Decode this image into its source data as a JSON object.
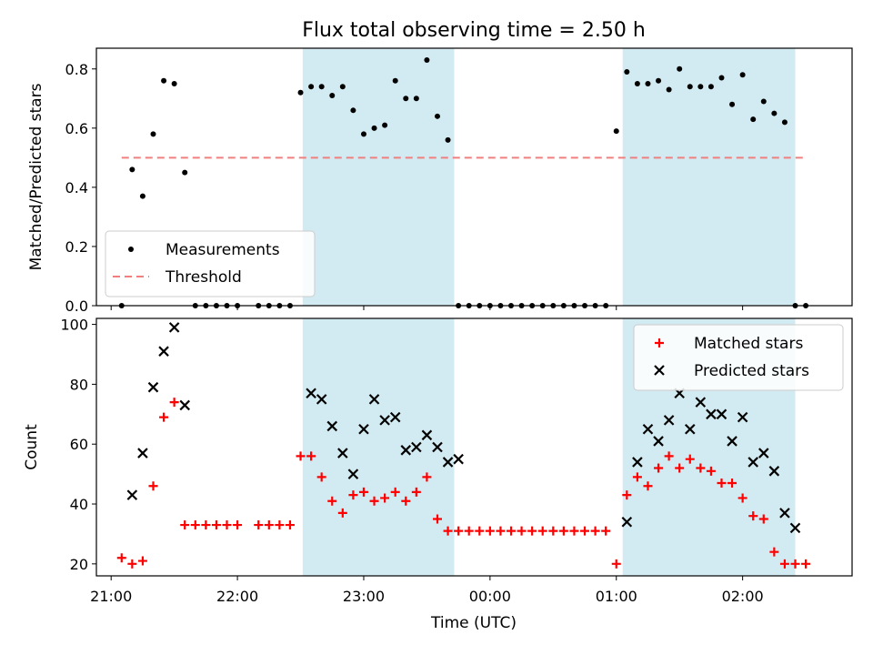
{
  "figure": {
    "title": "Flux total observing time = 2.50 h",
    "xlabel": "Time (UTC)"
  },
  "chart_data": [
    {
      "type": "scatter",
      "ylabel": "Matched/Predicted stars",
      "xlim": [
        "20:53",
        "02:52"
      ],
      "ylim": [
        0,
        0.87
      ],
      "yticks": [
        "0.0",
        "0.2",
        "0.4",
        "0.6",
        "0.8"
      ],
      "shaded_intervals": [
        [
          "22:31",
          "23:43"
        ],
        [
          "01:03",
          "02:25"
        ]
      ],
      "shade_color": "#add8e6",
      "series": [
        {
          "name": "Measurements",
          "marker": "dot",
          "color": "#000000",
          "x": [
            "21:05",
            "21:10",
            "21:15",
            "21:20",
            "21:25",
            "21:30",
            "21:35",
            "21:40",
            "21:45",
            "21:50",
            "21:55",
            "22:00",
            "22:10",
            "22:15",
            "22:20",
            "22:25",
            "22:30",
            "22:35",
            "22:40",
            "22:45",
            "22:50",
            "22:55",
            "23:00",
            "23:05",
            "23:10",
            "23:15",
            "23:20",
            "23:25",
            "23:30",
            "23:35",
            "23:40",
            "23:45",
            "23:50",
            "23:55",
            "00:00",
            "00:05",
            "00:10",
            "00:15",
            "00:20",
            "00:25",
            "00:30",
            "00:35",
            "00:40",
            "00:45",
            "00:50",
            "00:55",
            "01:00",
            "01:05",
            "01:10",
            "01:15",
            "01:20",
            "01:25",
            "01:30",
            "01:35",
            "01:40",
            "01:45",
            "01:50",
            "01:55",
            "02:00",
            "02:05",
            "02:10",
            "02:15",
            "02:20",
            "02:25",
            "02:30"
          ],
          "y": [
            0.0,
            0.46,
            0.37,
            0.58,
            0.76,
            0.75,
            0.45,
            0.0,
            0.0,
            0.0,
            0.0,
            0.0,
            0.0,
            0.0,
            0.0,
            0.0,
            0.72,
            0.74,
            0.74,
            0.71,
            0.74,
            0.66,
            0.58,
            0.6,
            0.61,
            0.76,
            0.7,
            0.7,
            0.83,
            0.64,
            0.56,
            0.0,
            0.0,
            0.0,
            0.0,
            0.0,
            0.0,
            0.0,
            0.0,
            0.0,
            0.0,
            0.0,
            0.0,
            0.0,
            0.0,
            0.0,
            0.59,
            0.79,
            0.75,
            0.75,
            0.76,
            0.73,
            0.8,
            0.74,
            0.74,
            0.74,
            0.77,
            0.68,
            0.78,
            0.63,
            0.69,
            0.65,
            0.62,
            0.0,
            0.0
          ]
        }
      ],
      "lines": [
        {
          "name": "Threshold",
          "style": "dashed",
          "color": "#f08080",
          "y": 0.5,
          "x_from": "21:05",
          "x_to": "02:30"
        }
      ],
      "legend_placement": "lower-left"
    },
    {
      "type": "scatter",
      "ylabel": "Count",
      "xlim": [
        "20:53",
        "02:52"
      ],
      "ylim": [
        16,
        102
      ],
      "yticks": [
        "20",
        "40",
        "60",
        "80",
        "100"
      ],
      "xticks": [
        "21:00",
        "22:00",
        "23:00",
        "00:00",
        "01:00",
        "02:00"
      ],
      "shaded_intervals": [
        [
          "22:31",
          "23:43"
        ],
        [
          "01:03",
          "02:25"
        ]
      ],
      "shade_color": "#add8e6",
      "series": [
        {
          "name": "Matched stars",
          "marker": "plus",
          "color": "#ff0000",
          "x": [
            "21:05",
            "21:10",
            "21:15",
            "21:20",
            "21:25",
            "21:30",
            "21:35",
            "21:40",
            "21:45",
            "21:50",
            "21:55",
            "22:00",
            "22:10",
            "22:15",
            "22:20",
            "22:25",
            "22:30",
            "22:35",
            "22:40",
            "22:45",
            "22:50",
            "22:55",
            "23:00",
            "23:05",
            "23:10",
            "23:15",
            "23:20",
            "23:25",
            "23:30",
            "23:35",
            "23:40",
            "23:45",
            "23:50",
            "23:55",
            "00:00",
            "00:05",
            "00:10",
            "00:15",
            "00:20",
            "00:25",
            "00:30",
            "00:35",
            "00:40",
            "00:45",
            "00:50",
            "00:55",
            "01:00",
            "01:05",
            "01:10",
            "01:15",
            "01:20",
            "01:25",
            "01:30",
            "01:35",
            "01:40",
            "01:45",
            "01:50",
            "01:55",
            "02:00",
            "02:05",
            "02:10",
            "02:15",
            "02:20",
            "02:25",
            "02:30"
          ],
          "y": [
            22,
            20,
            21,
            46,
            69,
            74,
            33,
            33,
            33,
            33,
            33,
            33,
            33,
            33,
            33,
            33,
            56,
            56,
            49,
            41,
            37,
            43,
            44,
            41,
            42,
            44,
            41,
            44,
            49,
            35,
            31,
            31,
            31,
            31,
            31,
            31,
            31,
            31,
            31,
            31,
            31,
            31,
            31,
            31,
            31,
            31,
            20,
            43,
            49,
            46,
            52,
            56,
            52,
            55,
            52,
            51,
            47,
            47,
            42,
            36,
            35,
            24,
            20,
            20,
            20
          ]
        },
        {
          "name": "Predicted stars",
          "marker": "x",
          "color": "#000000",
          "x": [
            "21:10",
            "21:15",
            "21:20",
            "21:25",
            "21:30",
            "21:35",
            "22:35",
            "22:40",
            "22:45",
            "22:50",
            "22:55",
            "23:00",
            "23:05",
            "23:10",
            "23:15",
            "23:20",
            "23:25",
            "23:30",
            "23:35",
            "23:40",
            "23:45",
            "01:05",
            "01:10",
            "01:15",
            "01:20",
            "01:25",
            "01:30",
            "01:35",
            "01:40",
            "01:45",
            "01:50",
            "01:55",
            "02:00",
            "02:05",
            "02:10",
            "02:15",
            "02:20",
            "02:25"
          ],
          "y": [
            43,
            57,
            79,
            91,
            99,
            73,
            77,
            75,
            66,
            57,
            50,
            65,
            75,
            68,
            69,
            58,
            59,
            63,
            59,
            54,
            55,
            34,
            54,
            65,
            61,
            68,
            77,
            65,
            74,
            70,
            70,
            61,
            69,
            54,
            57,
            51,
            37,
            32
          ]
        }
      ],
      "legend_placement": "upper-right"
    }
  ]
}
